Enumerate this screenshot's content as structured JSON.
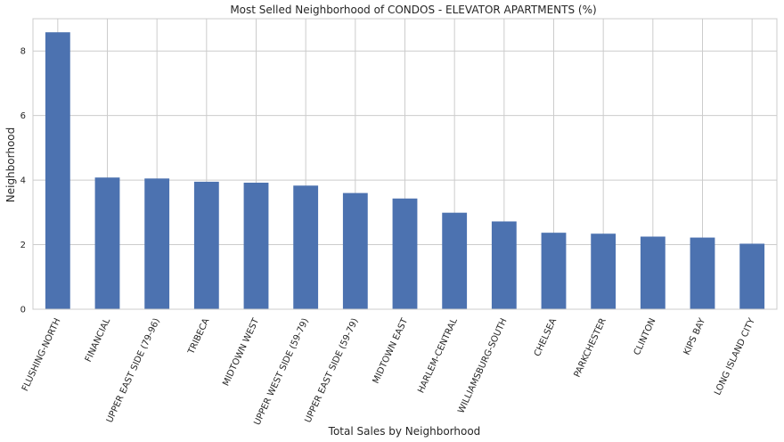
{
  "chart_data": {
    "type": "bar",
    "title": "Most Selled Neighborhood of CONDOS - ELEVATOR APARTMENTS (%)",
    "xlabel": "Total Sales by Neighborhood",
    "ylabel": "Neighborhood",
    "categories": [
      "FLUSHING-NORTH",
      "FINANCIAL",
      "UPPER EAST SIDE (79-96)",
      "TRIBECA",
      "MIDTOWN WEST",
      "UPPER WEST SIDE (59-79)",
      "UPPER EAST SIDE (59-79)",
      "MIDTOWN EAST",
      "HARLEM-CENTRAL",
      "WILLIAMSBURG-SOUTH",
      "CHELSEA",
      "PARKCHESTER",
      "CLINTON",
      "KIPS BAY",
      "LONG ISLAND CITY"
    ],
    "values": [
      8.58,
      4.08,
      4.05,
      3.95,
      3.92,
      3.83,
      3.6,
      3.43,
      2.99,
      2.72,
      2.37,
      2.34,
      2.25,
      2.22,
      2.03
    ],
    "yticks": [
      "0",
      "2",
      "4",
      "6",
      "8"
    ],
    "ylim": [
      0,
      9.0
    ],
    "grid": true,
    "bar_color": "#4c72b0",
    "grid_color": "#cccccc",
    "label_rotation_deg": -65
  }
}
